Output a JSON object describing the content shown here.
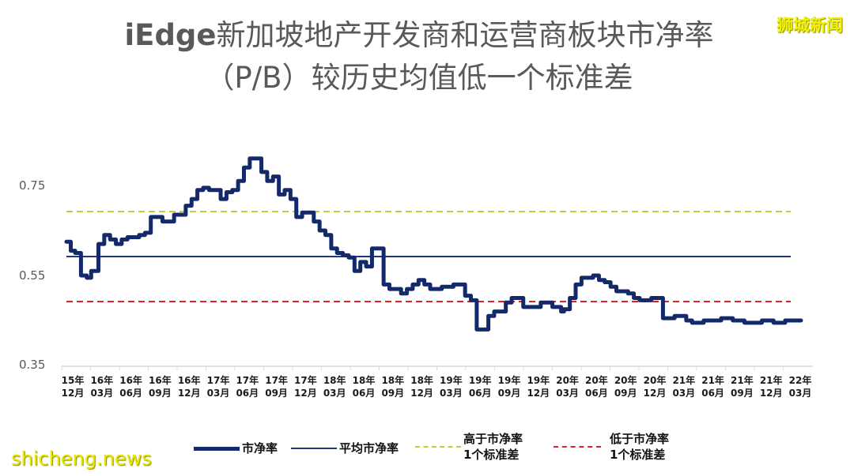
{
  "title": {
    "line1_prefix": "iEdge",
    "line1_rest": "新加坡地产开发商和运营商板块市净率",
    "line2": "（P/B）较历史均值低一个标准差"
  },
  "watermarks": {
    "top_right": "狮城新闻",
    "bottom_left": "shicheng.news"
  },
  "colors": {
    "series": "#13296b",
    "mean": "#1f3a7a",
    "plus_sd": "#b7d33a",
    "minus_sd": "#d9232e",
    "axis_text": "#595959"
  },
  "legend": {
    "items": [
      {
        "label": "市净率",
        "style": "thick-solid"
      },
      {
        "label": "平均市净率",
        "style": "thin-solid"
      },
      {
        "label_line1": "高于市净率",
        "label_line2": "1个标准差",
        "style": "green-dashed"
      },
      {
        "label_line1": "低于市净率",
        "label_line2": "1个标准差",
        "style": "red-dashed"
      }
    ]
  },
  "chart_data": {
    "type": "line",
    "title": "iEdge新加坡地产开发商和运营商板块市净率（P/B）较历史均值低一个标准差",
    "xlabel": "",
    "ylabel": "",
    "ylim": [
      0.35,
      0.85
    ],
    "yticks": [
      "0.75",
      "0.55",
      "0.35"
    ],
    "grid": false,
    "legend_position": "bottom",
    "categories": [
      "15年12月",
      "16年03月",
      "16年06月",
      "16年09月",
      "16年12月",
      "17年03月",
      "17年06月",
      "17年09月",
      "17年12月",
      "18年03月",
      "18年06月",
      "18年09月",
      "18年12月",
      "19年03月",
      "19年06月",
      "19年09月",
      "19年12月",
      "20年03月",
      "20年06月",
      "20年09月",
      "20年12月",
      "21年03月",
      "21年06月",
      "21年09月",
      "21年12月",
      "22年03月"
    ],
    "reference_lines": [
      {
        "name": "平均市净率",
        "value": 0.592
      },
      {
        "name": "高于市净率1个标准差",
        "value": 0.692
      },
      {
        "name": "低于市净率1个标准差",
        "value": 0.492
      }
    ],
    "series": [
      {
        "name": "市净率",
        "x_index": [
          0,
          0.15,
          0.3,
          0.5,
          0.7,
          0.85,
          1.0,
          1.1,
          1.3,
          1.5,
          1.7,
          1.9,
          2.1,
          2.3,
          2.5,
          2.7,
          2.9,
          3.1,
          3.3,
          3.5,
          3.7,
          3.9,
          4.1,
          4.3,
          4.5,
          4.7,
          4.9,
          5.1,
          5.3,
          5.5,
          5.7,
          5.9,
          6.1,
          6.3,
          6.5,
          6.7,
          6.9,
          7.1,
          7.3,
          7.5,
          7.7,
          7.9,
          8.1,
          8.3,
          8.5,
          8.7,
          8.9,
          9.1,
          9.3,
          9.5,
          9.7,
          9.9,
          10.1,
          10.3,
          10.5,
          10.7,
          10.9,
          11.1,
          11.3,
          11.5,
          11.7,
          11.9,
          12.1,
          12.3,
          12.5,
          12.7,
          12.9,
          13.1,
          13.3,
          13.5,
          13.7,
          13.9,
          14.1,
          14.3,
          14.5,
          14.7,
          14.9,
          15.1,
          15.3,
          15.5,
          15.7,
          15.9,
          16.1,
          16.3,
          16.5,
          16.7,
          16.9,
          17.0,
          17.1,
          17.3,
          17.5,
          17.7,
          17.9,
          18.1,
          18.3,
          18.5,
          18.7,
          18.9,
          19.1,
          19.3,
          19.5,
          19.7,
          19.9,
          20.1,
          20.3,
          20.5,
          20.7,
          20.9,
          21.1,
          21.3,
          21.5,
          21.7,
          21.9,
          22.1,
          22.3,
          22.5,
          22.7,
          22.9,
          23.1,
          23.3,
          23.5,
          23.7,
          23.9,
          24.1,
          24.3,
          24.5,
          24.7
        ],
        "values": [
          0.625,
          0.605,
          0.6,
          0.55,
          0.545,
          0.56,
          0.56,
          0.62,
          0.64,
          0.63,
          0.62,
          0.63,
          0.635,
          0.635,
          0.64,
          0.645,
          0.68,
          0.68,
          0.67,
          0.67,
          0.685,
          0.685,
          0.705,
          0.72,
          0.74,
          0.745,
          0.74,
          0.74,
          0.72,
          0.735,
          0.74,
          0.76,
          0.79,
          0.81,
          0.81,
          0.78,
          0.76,
          0.77,
          0.73,
          0.74,
          0.72,
          0.68,
          0.69,
          0.69,
          0.67,
          0.65,
          0.64,
          0.61,
          0.6,
          0.595,
          0.59,
          0.56,
          0.58,
          0.57,
          0.61,
          0.61,
          0.53,
          0.52,
          0.52,
          0.51,
          0.52,
          0.53,
          0.54,
          0.53,
          0.52,
          0.52,
          0.525,
          0.525,
          0.53,
          0.53,
          0.505,
          0.495,
          0.43,
          0.43,
          0.46,
          0.47,
          0.47,
          0.49,
          0.5,
          0.5,
          0.48,
          0.48,
          0.48,
          0.49,
          0.49,
          0.48,
          0.48,
          0.47,
          0.475,
          0.5,
          0.53,
          0.545,
          0.545,
          0.55,
          0.54,
          0.535,
          0.525,
          0.515,
          0.515,
          0.51,
          0.5,
          0.495,
          0.495,
          0.5,
          0.5,
          0.455,
          0.455,
          0.46,
          0.46,
          0.45,
          0.445,
          0.445,
          0.45,
          0.45,
          0.45,
          0.455,
          0.455,
          0.45,
          0.45,
          0.445,
          0.445,
          0.445,
          0.45,
          0.45,
          0.445,
          0.445,
          0.45
        ]
      }
    ]
  }
}
